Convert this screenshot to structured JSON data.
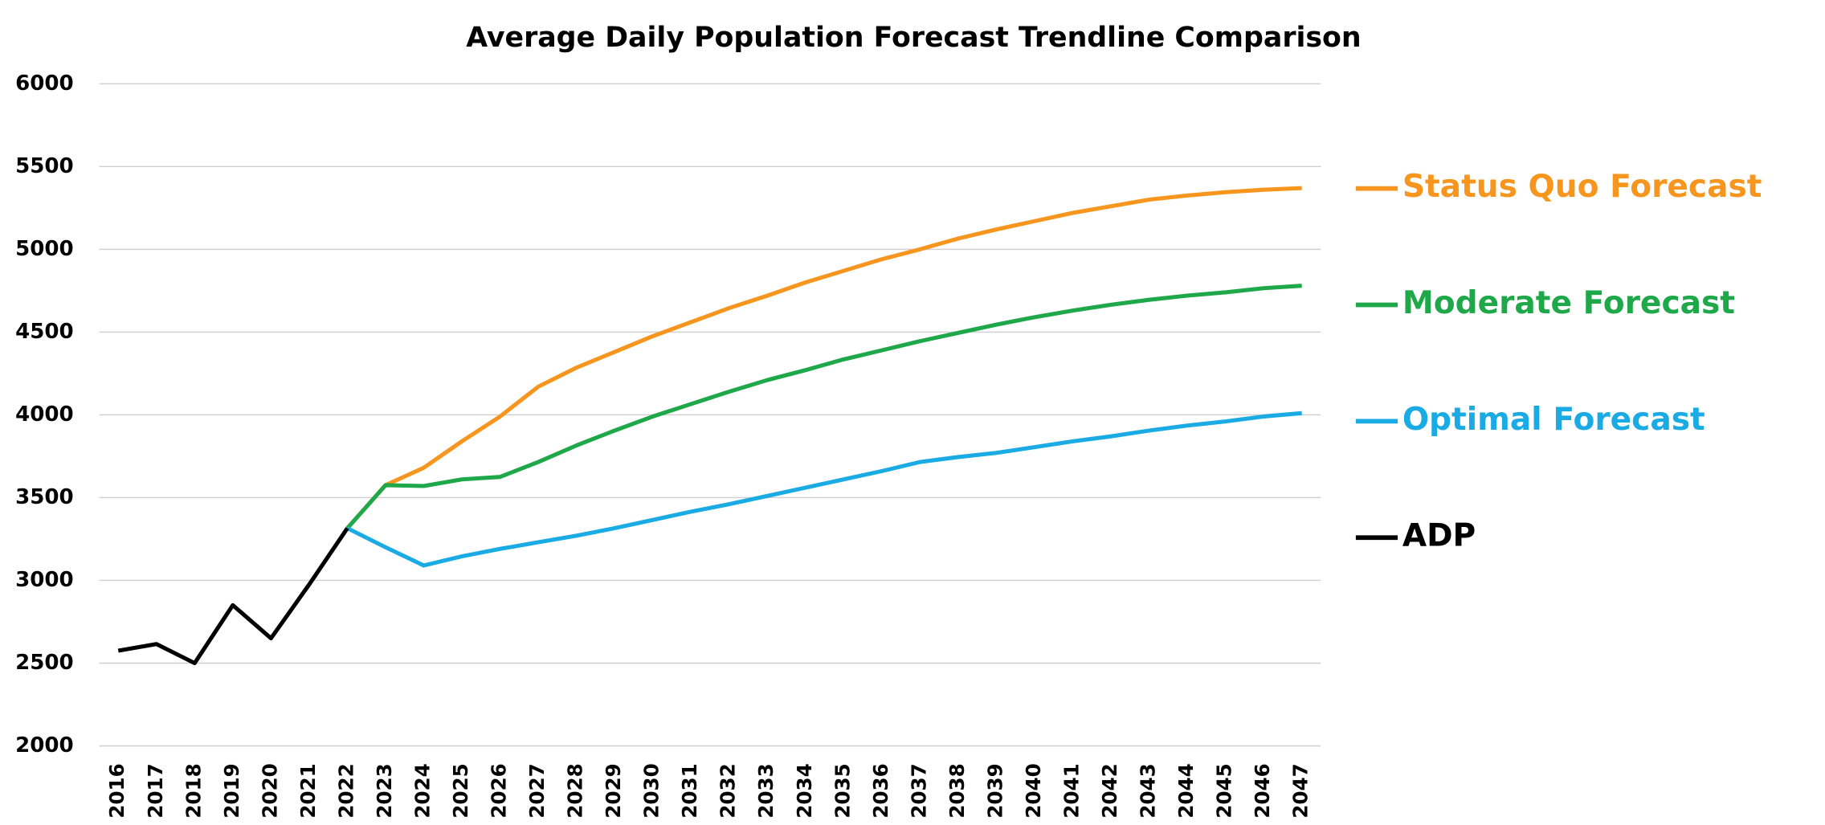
{
  "chart_data": {
    "type": "line",
    "title": "Average Daily Population Forecast Trendline Comparison",
    "categories": [
      "2016",
      "2017",
      "2018",
      "2019",
      "2020",
      "2021",
      "2022",
      "2023",
      "2024",
      "2025",
      "2026",
      "2027",
      "2028",
      "2029",
      "2030",
      "2031",
      "2032",
      "2033",
      "2034",
      "2035",
      "2036",
      "2037",
      "2038",
      "2039",
      "2040",
      "2041",
      "2042",
      "2043",
      "2044",
      "2045",
      "2046",
      "2047"
    ],
    "series": [
      {
        "name": "Status Quo Forecast",
        "color": "#f7961e",
        "values": [
          null,
          null,
          null,
          null,
          null,
          null,
          3315,
          3575,
          3680,
          3840,
          3990,
          4170,
          4285,
          4380,
          4475,
          4560,
          4645,
          4720,
          4800,
          4870,
          4940,
          5000,
          5065,
          5120,
          5170,
          5220,
          5260,
          5300,
          5325,
          5345,
          5360,
          5370
        ]
      },
      {
        "name": "Moderate Forecast",
        "color": "#1fa84a",
        "values": [
          null,
          null,
          null,
          null,
          null,
          null,
          3315,
          3575,
          3570,
          3610,
          3625,
          3715,
          3815,
          3905,
          3990,
          4065,
          4140,
          4210,
          4270,
          4335,
          4390,
          4445,
          4495,
          4545,
          4590,
          4630,
          4665,
          4695,
          4720,
          4740,
          4765,
          4780
        ]
      },
      {
        "name": "Optimal Forecast",
        "color": "#1aabe4",
        "values": [
          null,
          null,
          null,
          null,
          null,
          null,
          3315,
          3200,
          3090,
          3145,
          3190,
          3230,
          3270,
          3315,
          3365,
          3415,
          3460,
          3510,
          3560,
          3610,
          3660,
          3715,
          3745,
          3770,
          3805,
          3840,
          3870,
          3905,
          3935,
          3960,
          3990,
          4010
        ]
      },
      {
        "name": "ADP",
        "color": "#000000",
        "values": [
          2575,
          2615,
          2500,
          2850,
          2650,
          2975,
          3315,
          null,
          null,
          null,
          null,
          null,
          null,
          null,
          null,
          null,
          null,
          null,
          null,
          null,
          null,
          null,
          null,
          null,
          null,
          null,
          null,
          null,
          null,
          null,
          null,
          null
        ]
      }
    ],
    "ylim": [
      2000,
      6000
    ],
    "yticks": [
      2000,
      2500,
      3000,
      3500,
      4000,
      4500,
      5000,
      5500,
      6000
    ],
    "grid": true,
    "legend": "right"
  }
}
